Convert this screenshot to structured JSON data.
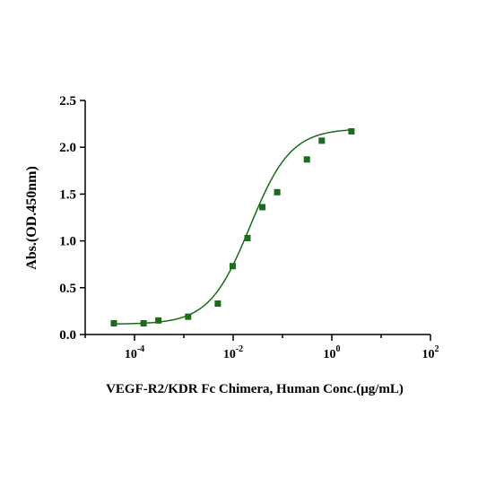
{
  "chart_data": {
    "type": "scatter",
    "title": "",
    "xlabel": "VEGF-R2/KDR Fc Chimera, Human Conc.(μg/mL)",
    "ylabel": "Abs.(OD.450nm)",
    "x_scale": "log10",
    "xlim": [
      1e-05,
      100
    ],
    "ylim": [
      0,
      2.5
    ],
    "grid": false,
    "legend": "none",
    "x_ticks": [
      {
        "base": "10",
        "exp": "-4"
      },
      {
        "base": "10",
        "exp": "-2"
      },
      {
        "base": "10",
        "exp": "0"
      },
      {
        "base": "10",
        "exp": "2"
      }
    ],
    "y_ticks": [
      "0.0",
      "0.5",
      "1.0",
      "1.5",
      "2.0",
      "2.5"
    ],
    "y_tick_values": [
      0,
      0.5,
      1.0,
      1.5,
      2.0,
      2.5
    ],
    "series": [
      {
        "color": "#1a6b1a",
        "marker": "square",
        "points": [
          {
            "x": 3.81e-05,
            "y": 0.12
          },
          {
            "x": 0.000153,
            "y": 0.12
          },
          {
            "x": 0.000305,
            "y": 0.15
          },
          {
            "x": 0.00122,
            "y": 0.19
          },
          {
            "x": 0.00488,
            "y": 0.33
          },
          {
            "x": 0.00977,
            "y": 0.73
          },
          {
            "x": 0.0195,
            "y": 1.03
          },
          {
            "x": 0.0391,
            "y": 1.36
          },
          {
            "x": 0.0781,
            "y": 1.52
          },
          {
            "x": 0.3125,
            "y": 1.87
          },
          {
            "x": 0.625,
            "y": 2.07
          },
          {
            "x": 2.5,
            "y": 2.17
          }
        ],
        "fit": {
          "type": "4PL",
          "bottom": 0.11,
          "top": 2.2,
          "ec50": 0.022,
          "hill": 1.05,
          "x_range": [
            3.81e-05,
            2.5
          ]
        }
      }
    ]
  }
}
